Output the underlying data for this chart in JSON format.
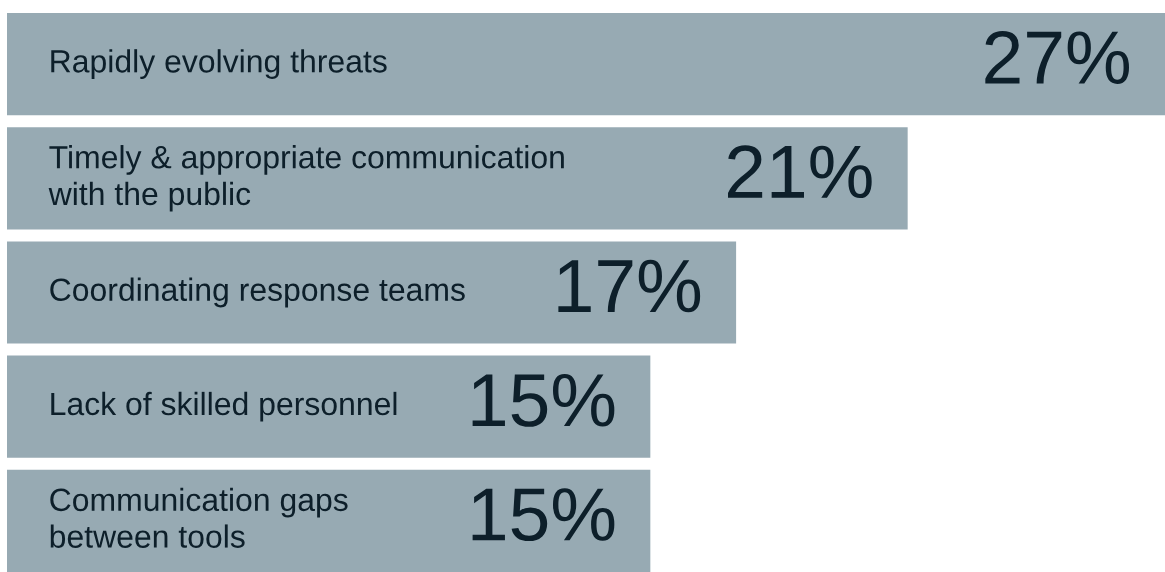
{
  "chart_data": {
    "type": "bar",
    "orientation": "horizontal",
    "categories": [
      "Rapidly evolving threats",
      "Timely & appropriate communication\nwith the public",
      "Coordinating response teams",
      "Lack of skilled personnel",
      "Communication gaps\nbetween tools"
    ],
    "values": [
      27,
      21,
      17,
      15,
      15
    ],
    "value_labels": [
      "27%",
      "21%",
      "17%",
      "15%",
      "15%"
    ],
    "color": "#97aab3",
    "xlim": [
      0,
      27
    ]
  }
}
